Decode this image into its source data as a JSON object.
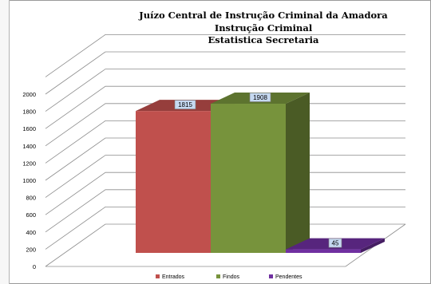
{
  "chart_data": {
    "type": "bar",
    "title_lines": [
      "Juízo Central de Instrução Criminal da Amadora",
      "Instrução Criminal",
      "Estatistica Secretaria"
    ],
    "categories": [
      "Entrados",
      "Findos",
      "Pendentes"
    ],
    "values": [
      1815,
      1908,
      45
    ],
    "colors": [
      "#c0504d",
      "#77933c",
      "#7030a0"
    ],
    "data_labels": [
      "1815",
      "1908",
      "45"
    ],
    "yticks": [
      0,
      200,
      400,
      600,
      800,
      1000,
      1200,
      1400,
      1600,
      1800,
      2000
    ],
    "ylim": [
      0,
      2000
    ],
    "style": "3d-column",
    "legend": "bottom",
    "grid": true
  }
}
